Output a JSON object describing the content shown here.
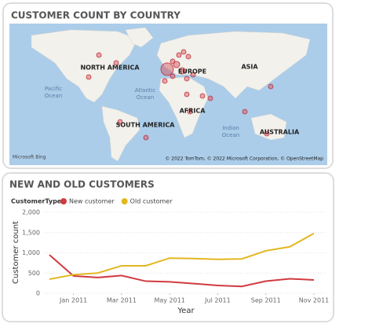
{
  "map": {
    "title": "CUSTOMER COUNT BY COUNTRY",
    "labels": [
      "NORTH AMERICA",
      "EUROPE",
      "ASIA",
      "AFRICA",
      "SOUTH AMERICA",
      "AUSTRALIA"
    ],
    "oceans": [
      [
        "Pacific",
        "Ocean"
      ],
      [
        "Atlantic",
        "Ocean"
      ],
      [
        "Indian",
        "Ocean"
      ]
    ],
    "provider": "Microsoft Bing",
    "attribution": "© 2022 TomTom, © 2022 Microsoft Corporation, © OpenStreetMap"
  },
  "chart_data": {
    "type": "line",
    "title": "NEW AND OLD CUSTOMERS",
    "legend_title": "CustomerType",
    "x": [
      "2010-12",
      "2011-01",
      "2011-02",
      "2011-03",
      "2011-04",
      "2011-05",
      "2011-06",
      "2011-07",
      "2011-08",
      "2011-09",
      "2011-10",
      "2011-11"
    ],
    "xlim": [
      "2010-12",
      "2011-11"
    ],
    "xticks": [
      {
        "value": "2011-01",
        "label": "Jan 2011"
      },
      {
        "value": "2011-03",
        "label": "Mar 2011"
      },
      {
        "value": "2011-05",
        "label": "May 2011"
      },
      {
        "value": "2011-07",
        "label": "Jul 2011"
      },
      {
        "value": "2011-09",
        "label": "Sep 2011"
      },
      {
        "value": "2011-11",
        "label": "Nov 2011"
      }
    ],
    "series": [
      {
        "name": "New customer",
        "color": "#d13b40",
        "values": [
          950,
          430,
          390,
          440,
          300,
          285,
          240,
          195,
          170,
          300,
          360,
          330
        ]
      },
      {
        "name": "Old customer",
        "color": "#e3b720",
        "values": [
          350,
          460,
          500,
          680,
          680,
          870,
          860,
          840,
          850,
          1050,
          1150,
          1480
        ]
      }
    ],
    "ylim": [
      0,
      2000
    ],
    "yticks": [
      0,
      500,
      {
        "value": 1000,
        "label": "1,000"
      },
      {
        "value": 1500,
        "label": "1,500"
      },
      {
        "value": 2000,
        "label": "2,000"
      }
    ],
    "xlabel": "Year",
    "ylabel": "Customer count",
    "grid": true
  }
}
